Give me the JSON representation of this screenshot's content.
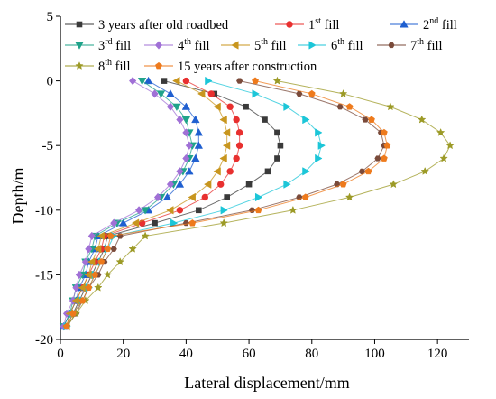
{
  "chart_data": {
    "type": "line",
    "xlabel": "Lateral displacement/mm",
    "ylabel": "Depth/m",
    "xlim": [
      0,
      130
    ],
    "ylim": [
      -20,
      5
    ],
    "xticks": [
      0,
      20,
      40,
      60,
      80,
      100,
      120
    ],
    "yticks": [
      5,
      0,
      -5,
      -10,
      -15,
      -20
    ],
    "legend_placement": "top",
    "y": [
      0,
      -1,
      -2,
      -3,
      -4,
      -5,
      -6,
      -7,
      -8,
      -9,
      -10,
      -11,
      -12,
      -13,
      -14,
      -15,
      -16,
      -17,
      -18,
      -19
    ],
    "series": [
      {
        "name": "3 years after old roadbed",
        "sup": "",
        "suffix": "",
        "color": "#3a3a3a",
        "marker": "square",
        "x": [
          33,
          49,
          59,
          65,
          69,
          70,
          69,
          66,
          60,
          53,
          44,
          30,
          15,
          14,
          12,
          10,
          8,
          6,
          4,
          2
        ]
      },
      {
        "name": "1",
        "sup": "st",
        "suffix": " fill",
        "color": "#e8302f",
        "marker": "circle",
        "x": [
          40,
          48,
          54,
          56,
          57,
          57,
          56,
          54,
          51,
          46,
          38,
          26,
          14,
          13,
          11,
          9,
          7,
          5,
          3,
          2
        ]
      },
      {
        "name": "2",
        "sup": "nd",
        "suffix": " fill",
        "color": "#1f5fd0",
        "marker": "triangle-up",
        "x": [
          28,
          35,
          40,
          43,
          44,
          44,
          43,
          41,
          38,
          34,
          28,
          20,
          12,
          11,
          9,
          8,
          6,
          5,
          3,
          1
        ]
      },
      {
        "name": "3",
        "sup": "rd",
        "suffix": " fill",
        "color": "#1fa38a",
        "marker": "triangle-down",
        "x": [
          26,
          32,
          37,
          40,
          41,
          42,
          41,
          39,
          36,
          32,
          27,
          18,
          11,
          10,
          8,
          7,
          5,
          4,
          3,
          1
        ]
      },
      {
        "name": "4",
        "sup": "th",
        "suffix": " fill",
        "color": "#a070d6",
        "marker": "diamond",
        "x": [
          23,
          30,
          35,
          38,
          40,
          41,
          40,
          38,
          35,
          31,
          25,
          17,
          10,
          9,
          8,
          6,
          5,
          4,
          2,
          1
        ]
      },
      {
        "name": "5",
        "sup": "th",
        "suffix": " fill",
        "color": "#c8961e",
        "marker": "triangle-left",
        "x": [
          37,
          45,
          50,
          52,
          53,
          53,
          52,
          50,
          47,
          42,
          35,
          24,
          13,
          12,
          10,
          9,
          7,
          5,
          3,
          2
        ]
      },
      {
        "name": "6",
        "sup": "th",
        "suffix": " fill",
        "color": "#1cc6d8",
        "marker": "triangle-right",
        "x": [
          47,
          62,
          72,
          78,
          82,
          83,
          82,
          78,
          72,
          63,
          52,
          36,
          17,
          15,
          13,
          11,
          9,
          7,
          4,
          2
        ]
      },
      {
        "name": "7",
        "sup": "th",
        "suffix": " fill",
        "color": "#7a4a3a",
        "marker": "hexagon",
        "x": [
          57,
          76,
          89,
          97,
          102,
          103,
          101,
          96,
          88,
          76,
          61,
          40,
          19,
          17,
          14,
          12,
          9,
          7,
          5,
          2
        ]
      },
      {
        "name": "8",
        "sup": "th",
        "suffix": " fill",
        "color": "#9c9a26",
        "marker": "star",
        "x": [
          69,
          90,
          105,
          115,
          121,
          124,
          122,
          116,
          106,
          92,
          74,
          52,
          27,
          23,
          19,
          15,
          12,
          8,
          5,
          2
        ]
      },
      {
        "name": "15 years after construction",
        "sup": "",
        "suffix": "",
        "color": "#ee7a1c",
        "marker": "pentagon",
        "x": [
          62,
          80,
          92,
          99,
          103,
          104,
          103,
          98,
          90,
          78,
          63,
          42,
          16,
          15,
          13,
          11,
          9,
          7,
          4,
          2
        ]
      }
    ]
  }
}
